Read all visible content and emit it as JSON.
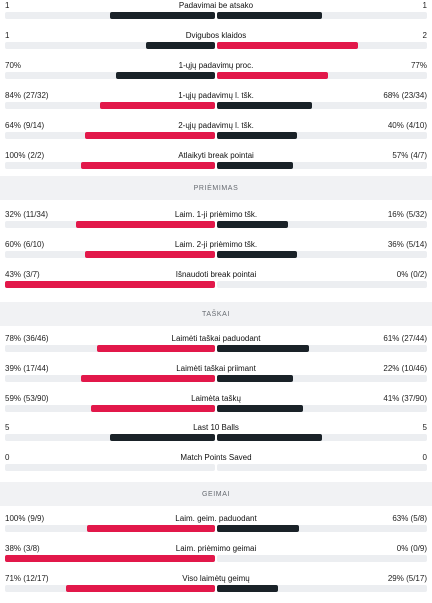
{
  "colors": {
    "leading": "#e2184a",
    "trailing": "#1a2228",
    "track": "#eceef1",
    "section_bg": "#f1f2f4"
  },
  "sections": [
    {
      "title": "",
      "rows": [
        {
          "label": "Padavimai be atsako",
          "home": "1",
          "away": "1",
          "home_fill": 0.5,
          "away_fill": 0.5,
          "home_color": "#1a2228",
          "away_color": "#1a2228"
        },
        {
          "label": "Dvigubos klaidos",
          "home": "1",
          "away": "2",
          "home_fill": 0.33,
          "away_fill": 0.67,
          "home_color": "#1a2228",
          "away_color": "#e2184a"
        },
        {
          "label": "1-ųjų padavimų proc.",
          "home": "70%",
          "away": "77%",
          "home_fill": 0.47,
          "away_fill": 0.53,
          "home_color": "#1a2228",
          "away_color": "#e2184a"
        },
        {
          "label": "1-ųjų padavimų l. tšk.",
          "home": "84% (27/32)",
          "away": "68% (23/34)",
          "home_fill": 0.55,
          "away_fill": 0.45,
          "home_color": "#e2184a",
          "away_color": "#1a2228"
        },
        {
          "label": "2-ųjų padavimų l. tšk.",
          "home": "64% (9/14)",
          "away": "40% (4/10)",
          "home_fill": 0.62,
          "away_fill": 0.38,
          "home_color": "#e2184a",
          "away_color": "#1a2228"
        },
        {
          "label": "Atlaikyti break pointai",
          "home": "100% (2/2)",
          "away": "57% (4/7)",
          "home_fill": 0.64,
          "away_fill": 0.36,
          "home_color": "#e2184a",
          "away_color": "#1a2228"
        }
      ]
    },
    {
      "title": "PRIĖMIMAS",
      "rows": [
        {
          "label": "Laim. 1-ji priėmimo tšk.",
          "home": "32% (11/34)",
          "away": "16% (5/32)",
          "home_fill": 0.66,
          "away_fill": 0.34,
          "home_color": "#e2184a",
          "away_color": "#1a2228"
        },
        {
          "label": "Laim. 2-ji priėmimo tšk.",
          "home": "60% (6/10)",
          "away": "36% (5/14)",
          "home_fill": 0.62,
          "away_fill": 0.38,
          "home_color": "#e2184a",
          "away_color": "#1a2228"
        },
        {
          "label": "Išnaudoti break pointai",
          "home": "43% (3/7)",
          "away": "0% (0/2)",
          "home_fill": 1.0,
          "away_fill": 0.0,
          "home_color": "#e2184a",
          "away_color": "#1a2228"
        }
      ]
    },
    {
      "title": "TAŠKAI",
      "rows": [
        {
          "label": "Laimėti taškai paduodant",
          "home": "78% (36/46)",
          "away": "61% (27/44)",
          "home_fill": 0.56,
          "away_fill": 0.44,
          "home_color": "#e2184a",
          "away_color": "#1a2228"
        },
        {
          "label": "Laimėti taškai priimant",
          "home": "39% (17/44)",
          "away": "22% (10/46)",
          "home_fill": 0.64,
          "away_fill": 0.36,
          "home_color": "#e2184a",
          "away_color": "#1a2228"
        },
        {
          "label": "Laimėta taškų",
          "home": "59% (53/90)",
          "away": "41% (37/90)",
          "home_fill": 0.59,
          "away_fill": 0.41,
          "home_color": "#e2184a",
          "away_color": "#1a2228"
        },
        {
          "label": "Last 10 Balls",
          "home": "5",
          "away": "5",
          "home_fill": 0.5,
          "away_fill": 0.5,
          "home_color": "#1a2228",
          "away_color": "#1a2228"
        },
        {
          "label": "Match Points Saved",
          "home": "0",
          "away": "0",
          "home_fill": 0.0,
          "away_fill": 0.0,
          "home_color": "#1a2228",
          "away_color": "#1a2228"
        }
      ]
    },
    {
      "title": "GEIMAI",
      "rows": [
        {
          "label": "Laim. geim. paduodant",
          "home": "100% (9/9)",
          "away": "63% (5/8)",
          "home_fill": 0.61,
          "away_fill": 0.39,
          "home_color": "#e2184a",
          "away_color": "#1a2228"
        },
        {
          "label": "Laim. priėmimo geimai",
          "home": "38% (3/8)",
          "away": "0% (0/9)",
          "home_fill": 1.0,
          "away_fill": 0.0,
          "home_color": "#e2184a",
          "away_color": "#1a2228"
        },
        {
          "label": "Viso laimėtų geimų",
          "home": "71% (12/17)",
          "away": "29% (5/17)",
          "home_fill": 0.71,
          "away_fill": 0.29,
          "home_color": "#e2184a",
          "away_color": "#1a2228"
        }
      ]
    }
  ]
}
